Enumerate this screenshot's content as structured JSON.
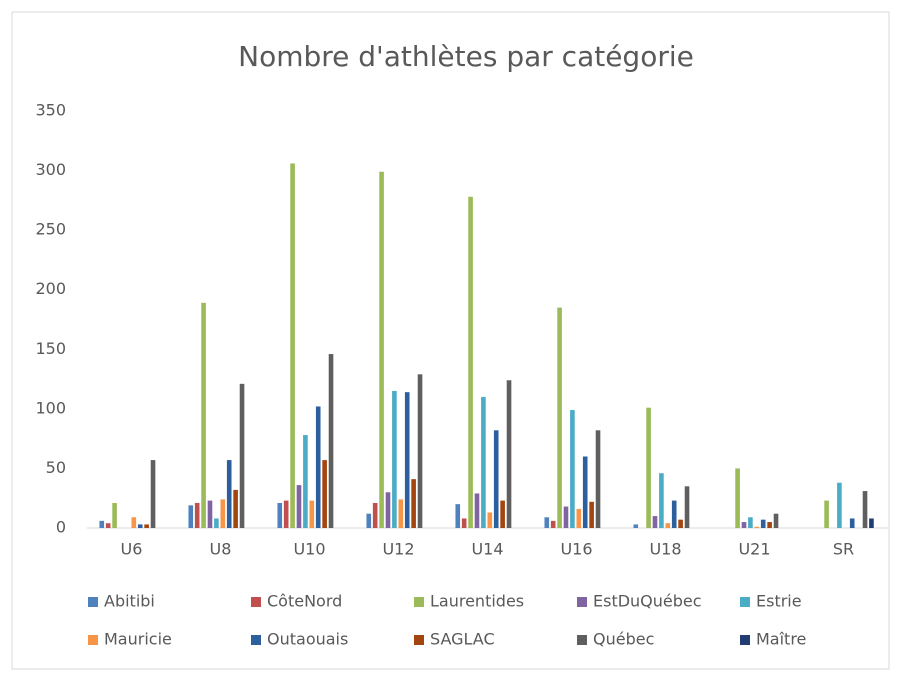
{
  "chart_data": {
    "type": "bar",
    "title": "Nombre d'athlètes par catégorie",
    "categories": [
      "U6",
      "U8",
      "U10",
      "U12",
      "U14",
      "U16",
      "U18",
      "U21",
      "SR"
    ],
    "series": [
      {
        "name": "Abitibi",
        "color": "#4f81bd",
        "values": [
          6,
          19,
          21,
          12,
          20,
          9,
          3,
          0,
          0
        ]
      },
      {
        "name": "CôteNord",
        "color": "#c0504d",
        "values": [
          4,
          21,
          23,
          21,
          8,
          6,
          0,
          0,
          0
        ]
      },
      {
        "name": "Laurentides",
        "color": "#9bbb59",
        "values": [
          21,
          189,
          306,
          299,
          278,
          185,
          101,
          50,
          23
        ]
      },
      {
        "name": "EstDuQuébec",
        "color": "#8064a2",
        "values": [
          0,
          23,
          36,
          30,
          29,
          18,
          10,
          5,
          0
        ]
      },
      {
        "name": "Estrie",
        "color": "#4bacc6",
        "values": [
          0,
          8,
          78,
          115,
          110,
          99,
          46,
          9,
          38
        ]
      },
      {
        "name": "Mauricie",
        "color": "#f79646",
        "values": [
          9,
          24,
          23,
          24,
          13,
          16,
          4,
          1,
          0
        ]
      },
      {
        "name": "Outaouais",
        "color": "#2c5f9e",
        "values": [
          3,
          57,
          102,
          114,
          82,
          60,
          23,
          7,
          8
        ]
      },
      {
        "name": "SAGLAC",
        "color": "#a3450f",
        "values": [
          3,
          32,
          57,
          41,
          23,
          22,
          7,
          5,
          0
        ]
      },
      {
        "name": "Québec",
        "color": "#5f5f5f",
        "values": [
          57,
          121,
          146,
          129,
          124,
          82,
          35,
          12,
          31
        ]
      },
      {
        "name": "Maître",
        "color": "#1f3c73",
        "values": [
          0,
          0,
          0,
          0,
          0,
          0,
          0,
          0,
          8
        ]
      }
    ],
    "ylim": [
      0,
      350
    ],
    "yticks": [
      0,
      50,
      100,
      150,
      200,
      250,
      300,
      350
    ],
    "grid": false,
    "legend": "bottom"
  }
}
